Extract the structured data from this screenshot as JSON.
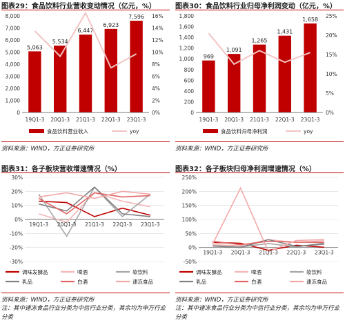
{
  "colors": {
    "bar": "#c00000",
    "line": "#f2c4c4",
    "grid": "#d9d9d9",
    "axis": "#777777",
    "s_tiaowei": "#c00000",
    "s_pijiu": "#f4b6b6",
    "s_ruanyinliao": "#a6a6a6",
    "s_rupin": "#7f7f7f",
    "s_baijiu": "#e06666",
    "s_suodong": "#f2a7a7"
  },
  "panels": {
    "p29": {
      "title": "图表29：食品饮料行业营收变动情况（亿元，%）",
      "source": "资料来源：WIND，方正证券研究所"
    },
    "p30": {
      "title": "图表30：食品饮料行业归母净利润变动（亿元，%）",
      "source": "资料来源：WIND，方正证券研究所"
    },
    "p31": {
      "title": "图表31：各子板块营收增速情况（%）",
      "source": "资料来源：WIND，方正证券研究所",
      "note": "注：其中速冻食品行业分类为中信行业分类，其余均为申万行业分类"
    },
    "p32": {
      "title": "图表32：各子板块归母净利润增速情况（%）",
      "source": "资料来源：WIND，方正证券研究所",
      "note": "注：其中速冻食品行业分类为中信行业分类，其余均为申万行业分类"
    }
  },
  "chart_data": [
    {
      "type": "bar",
      "categories": [
        "19Q1-3",
        "20Q1-3",
        "21Q1-3",
        "22Q1-3",
        "23Q1-3"
      ],
      "series": [
        {
          "name": "食品饮料营业收入",
          "values": [
            5063,
            5534,
            6447,
            6923,
            7596
          ],
          "axis": "left"
        },
        {
          "name": "yoy",
          "values": [
            13.5,
            9.3,
            16.5,
            7.4,
            9.7
          ],
          "axis": "right",
          "kind": "line"
        }
      ],
      "data_labels": [
        "5,063",
        "5,534",
        "6,447",
        "6,923",
        "7,596"
      ],
      "ylim": [
        0,
        8000
      ],
      "yticks": [
        "0",
        "1,000",
        "2,000",
        "3,000",
        "4,000",
        "5,000",
        "6,000",
        "7,000",
        "8,000"
      ],
      "y2lim": [
        0,
        16
      ],
      "y2ticks": [
        "0%",
        "2%",
        "4%",
        "6%",
        "8%",
        "10%",
        "12%",
        "14%",
        "16%"
      ],
      "legend": "bottom"
    },
    {
      "type": "bar",
      "categories": [
        "19Q1-3",
        "20Q1-3",
        "21Q1-3",
        "22Q1-3",
        "23Q1-3"
      ],
      "series": [
        {
          "name": "食品饮料归母净利润",
          "values": [
            969,
            1091,
            1265,
            1431,
            1658
          ],
          "axis": "left"
        },
        {
          "name": "yoy",
          "values": [
            20.5,
            12.5,
            16.0,
            13.0,
            15.5
          ],
          "axis": "right",
          "kind": "line"
        }
      ],
      "data_labels": [
        "969",
        "1,091",
        "1,265",
        "1,431",
        "1,658"
      ],
      "ylim": [
        0,
        1800
      ],
      "yticks": [
        "0",
        "200",
        "400",
        "600",
        "800",
        "1,000",
        "1,200",
        "1,400",
        "1,600",
        "1,800"
      ],
      "y2lim": [
        0,
        25
      ],
      "y2ticks": [
        "0%",
        "5%",
        "10%",
        "15%",
        "20%",
        "25%"
      ],
      "legend": "bottom"
    },
    {
      "type": "line",
      "categories": [
        "19Q1-3",
        "20Q1-3",
        "21Q1-3",
        "22Q1-3",
        "23Q1-3"
      ],
      "series": [
        {
          "name": "调味发酵品",
          "values": [
            13,
            12,
            2,
            8,
            3
          ],
          "color_key": "s_tiaowei"
        },
        {
          "name": "啤酒",
          "values": [
            4,
            -2,
            19,
            13,
            9
          ],
          "color_key": "s_pijiu"
        },
        {
          "name": "软饮料",
          "values": [
            18,
            -12,
            23,
            2,
            18
          ],
          "color_key": "s_ruanyinliao"
        },
        {
          "name": "乳品",
          "values": [
            11,
            6,
            23,
            4,
            2
          ],
          "color_key": "s_rupin"
        },
        {
          "name": "白酒",
          "values": [
            15,
            4,
            19,
            16,
            17
          ],
          "color_key": "s_baijiu"
        },
        {
          "name": "速冻食品",
          "values": [
            16,
            19,
            15,
            20,
            18
          ],
          "color_key": "s_suodong"
        }
      ],
      "ylim": [
        -30,
        30
      ],
      "yticks": [
        "-30%",
        "-20%",
        "-10%",
        "0%",
        "10%",
        "20%",
        "30%"
      ],
      "legend": "bottom"
    },
    {
      "type": "line",
      "categories": [
        "19Q1-3",
        "20Q1-3",
        "21Q1-3",
        "22Q1-3",
        "23Q1-3"
      ],
      "series": [
        {
          "name": "调味发酵品",
          "values": [
            18,
            15,
            -10,
            8,
            1
          ],
          "color_key": "s_tiaowei"
        },
        {
          "name": "啤酒",
          "values": [
            10,
            6,
            28,
            18,
            24
          ],
          "color_key": "s_pijiu"
        },
        {
          "name": "软饮料",
          "values": [
            6,
            2,
            14,
            2,
            16
          ],
          "color_key": "s_ruanyinliao"
        },
        {
          "name": "乳品",
          "values": [
            5,
            0,
            28,
            4,
            12
          ],
          "color_key": "s_rupin"
        },
        {
          "name": "白酒",
          "values": [
            22,
            10,
            22,
            19,
            18
          ],
          "color_key": "s_baijiu"
        },
        {
          "name": "速冻食品",
          "values": [
            12,
            212,
            -15,
            25,
            28
          ],
          "color_key": "s_suodong"
        }
      ],
      "ylim": [
        -50,
        250
      ],
      "yticks": [
        "-50%",
        "0%",
        "50%",
        "100%",
        "150%",
        "200%",
        "250%"
      ],
      "legend": "bottom"
    }
  ]
}
